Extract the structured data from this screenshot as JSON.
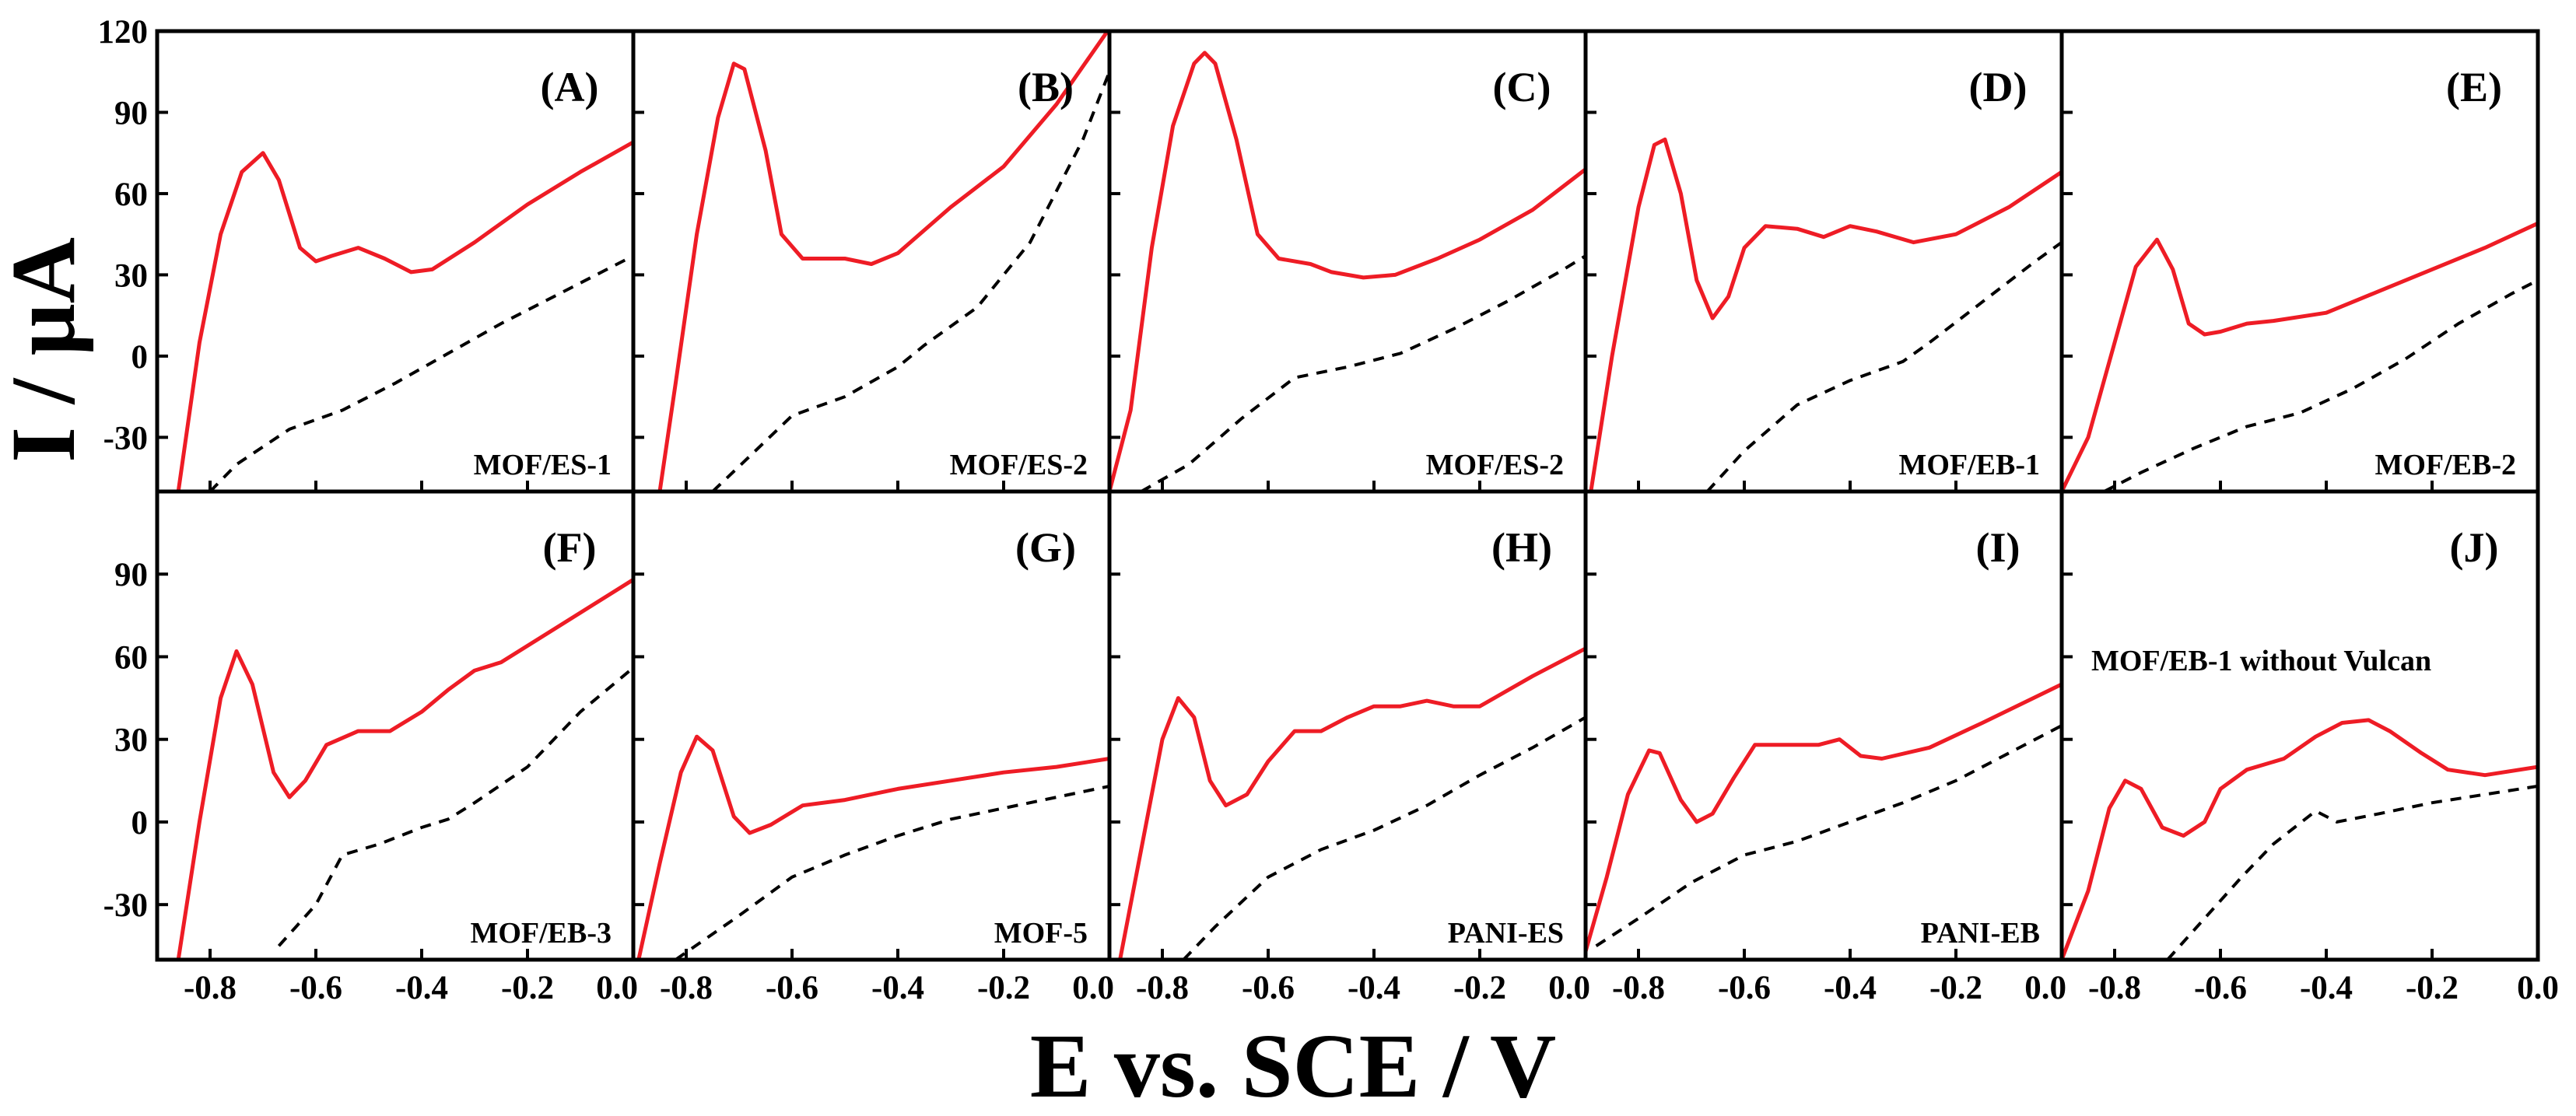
{
  "chart_data": {
    "type": "line",
    "figure_ylabel": "I / μA",
    "figure_xlabel": "E vs. SCE / V",
    "xlim": [
      -0.9,
      0.0
    ],
    "ylim": [
      -50,
      120
    ],
    "x_ticks": [
      -0.8,
      -0.6,
      -0.4,
      -0.2,
      0.0
    ],
    "x_tick_labels": [
      "-0.8",
      "-0.6",
      "-0.4",
      "-0.2",
      "0.0"
    ],
    "y_ticks": [
      -30,
      0,
      30,
      60,
      90,
      120
    ],
    "y_tick_labels_top": [
      "-30",
      "0",
      "30",
      "60",
      "90",
      "120"
    ],
    "y_tick_labels_bottom": [
      "-30",
      "0",
      "30",
      "60",
      "90"
    ],
    "series_styles": {
      "with_sample": "#ee1c25",
      "blank": "#000000"
    },
    "panels": [
      {
        "letter": "(A)",
        "label": "MOF/ES-1",
        "red": [
          [
            -0.86,
            -50
          ],
          [
            -0.82,
            5
          ],
          [
            -0.78,
            45
          ],
          [
            -0.74,
            68
          ],
          [
            -0.7,
            75
          ],
          [
            -0.67,
            65
          ],
          [
            -0.63,
            40
          ],
          [
            -0.6,
            35
          ],
          [
            -0.57,
            37
          ],
          [
            -0.52,
            40
          ],
          [
            -0.47,
            36
          ],
          [
            -0.42,
            31
          ],
          [
            -0.38,
            32
          ],
          [
            -0.3,
            42
          ],
          [
            -0.2,
            56
          ],
          [
            -0.1,
            68
          ],
          [
            0.0,
            79
          ]
        ],
        "black": [
          [
            -0.8,
            -50
          ],
          [
            -0.75,
            -40
          ],
          [
            -0.65,
            -27
          ],
          [
            -0.55,
            -20
          ],
          [
            -0.45,
            -10
          ],
          [
            -0.35,
            1
          ],
          [
            -0.25,
            12
          ],
          [
            -0.15,
            22
          ],
          [
            -0.05,
            32
          ],
          [
            0.0,
            37
          ]
        ]
      },
      {
        "letter": "(B)",
        "label": "MOF/ES-2",
        "red": [
          [
            -0.85,
            -50
          ],
          [
            -0.82,
            -10
          ],
          [
            -0.78,
            45
          ],
          [
            -0.74,
            88
          ],
          [
            -0.71,
            108
          ],
          [
            -0.69,
            106
          ],
          [
            -0.65,
            76
          ],
          [
            -0.62,
            45
          ],
          [
            -0.58,
            36
          ],
          [
            -0.5,
            36
          ],
          [
            -0.45,
            34
          ],
          [
            -0.4,
            38
          ],
          [
            -0.3,
            55
          ],
          [
            -0.2,
            70
          ],
          [
            -0.1,
            93
          ],
          [
            0.0,
            121
          ]
        ],
        "black": [
          [
            -0.75,
            -50
          ],
          [
            -0.68,
            -37
          ],
          [
            -0.6,
            -22
          ],
          [
            -0.5,
            -15
          ],
          [
            -0.4,
            -4
          ],
          [
            -0.35,
            4
          ],
          [
            -0.25,
            18
          ],
          [
            -0.15,
            42
          ],
          [
            -0.05,
            80
          ],
          [
            0.0,
            105
          ]
        ]
      },
      {
        "letter": "(C)",
        "label": "MOF/ES-2",
        "red": [
          [
            -0.9,
            -50
          ],
          [
            -0.86,
            -20
          ],
          [
            -0.82,
            40
          ],
          [
            -0.78,
            85
          ],
          [
            -0.74,
            108
          ],
          [
            -0.72,
            112
          ],
          [
            -0.7,
            108
          ],
          [
            -0.66,
            80
          ],
          [
            -0.62,
            45
          ],
          [
            -0.58,
            36
          ],
          [
            -0.52,
            34
          ],
          [
            -0.48,
            31
          ],
          [
            -0.42,
            29
          ],
          [
            -0.36,
            30
          ],
          [
            -0.28,
            36
          ],
          [
            -0.2,
            43
          ],
          [
            -0.1,
            54
          ],
          [
            0.0,
            69
          ]
        ],
        "black": [
          [
            -0.84,
            -50
          ],
          [
            -0.75,
            -40
          ],
          [
            -0.65,
            -23
          ],
          [
            -0.55,
            -8
          ],
          [
            -0.45,
            -4
          ],
          [
            -0.35,
            1
          ],
          [
            -0.25,
            10
          ],
          [
            -0.15,
            20
          ],
          [
            -0.05,
            31
          ],
          [
            0.0,
            37
          ]
        ]
      },
      {
        "letter": "(D)",
        "label": "MOF/EB-1",
        "red": [
          [
            -0.89,
            -50
          ],
          [
            -0.85,
            0
          ],
          [
            -0.8,
            55
          ],
          [
            -0.77,
            78
          ],
          [
            -0.75,
            80
          ],
          [
            -0.72,
            60
          ],
          [
            -0.69,
            28
          ],
          [
            -0.66,
            14
          ],
          [
            -0.63,
            22
          ],
          [
            -0.6,
            40
          ],
          [
            -0.56,
            48
          ],
          [
            -0.5,
            47
          ],
          [
            -0.45,
            44
          ],
          [
            -0.4,
            48
          ],
          [
            -0.35,
            46
          ],
          [
            -0.28,
            42
          ],
          [
            -0.2,
            45
          ],
          [
            -0.1,
            55
          ],
          [
            0.0,
            68
          ]
        ],
        "black": [
          [
            -0.67,
            -50
          ],
          [
            -0.6,
            -35
          ],
          [
            -0.5,
            -18
          ],
          [
            -0.4,
            -9
          ],
          [
            -0.3,
            -2
          ],
          [
            -0.25,
            5
          ],
          [
            -0.15,
            20
          ],
          [
            -0.05,
            35
          ],
          [
            0.0,
            42
          ]
        ]
      },
      {
        "letter": "(E)",
        "label": "MOF/EB-2",
        "red": [
          [
            -0.9,
            -50
          ],
          [
            -0.85,
            -30
          ],
          [
            -0.8,
            5
          ],
          [
            -0.76,
            33
          ],
          [
            -0.72,
            43
          ],
          [
            -0.69,
            32
          ],
          [
            -0.66,
            12
          ],
          [
            -0.63,
            8
          ],
          [
            -0.6,
            9
          ],
          [
            -0.55,
            12
          ],
          [
            -0.5,
            13
          ],
          [
            -0.4,
            16
          ],
          [
            -0.3,
            24
          ],
          [
            -0.2,
            32
          ],
          [
            -0.1,
            40
          ],
          [
            0.0,
            49
          ]
        ],
        "black": [
          [
            -0.82,
            -50
          ],
          [
            -0.75,
            -43
          ],
          [
            -0.65,
            -34
          ],
          [
            -0.55,
            -26
          ],
          [
            -0.45,
            -21
          ],
          [
            -0.35,
            -12
          ],
          [
            -0.25,
            -1
          ],
          [
            -0.15,
            12
          ],
          [
            -0.05,
            23
          ],
          [
            0.0,
            28
          ]
        ]
      },
      {
        "letter": "(F)",
        "label": "MOF/EB-3",
        "red": [
          [
            -0.86,
            -50
          ],
          [
            -0.82,
            0
          ],
          [
            -0.78,
            45
          ],
          [
            -0.75,
            62
          ],
          [
            -0.72,
            50
          ],
          [
            -0.68,
            18
          ],
          [
            -0.65,
            9
          ],
          [
            -0.62,
            15
          ],
          [
            -0.58,
            28
          ],
          [
            -0.52,
            33
          ],
          [
            -0.46,
            33
          ],
          [
            -0.4,
            40
          ],
          [
            -0.35,
            48
          ],
          [
            -0.3,
            55
          ],
          [
            -0.25,
            58
          ],
          [
            -0.15,
            70
          ],
          [
            0.0,
            88
          ]
        ],
        "black": [
          [
            -0.67,
            -45
          ],
          [
            -0.6,
            -30
          ],
          [
            -0.55,
            -12
          ],
          [
            -0.48,
            -8
          ],
          [
            -0.4,
            -2
          ],
          [
            -0.35,
            1
          ],
          [
            -0.3,
            7
          ],
          [
            -0.2,
            20
          ],
          [
            -0.1,
            40
          ],
          [
            0.0,
            56
          ]
        ]
      },
      {
        "letter": "(G)",
        "label": "MOF-5",
        "red": [
          [
            -0.89,
            -50
          ],
          [
            -0.85,
            -15
          ],
          [
            -0.81,
            18
          ],
          [
            -0.78,
            31
          ],
          [
            -0.75,
            26
          ],
          [
            -0.71,
            2
          ],
          [
            -0.68,
            -4
          ],
          [
            -0.64,
            -1
          ],
          [
            -0.58,
            6
          ],
          [
            -0.5,
            8
          ],
          [
            -0.4,
            12
          ],
          [
            -0.3,
            15
          ],
          [
            -0.2,
            18
          ],
          [
            -0.1,
            20
          ],
          [
            0.0,
            23
          ]
        ],
        "black": [
          [
            -0.82,
            -50
          ],
          [
            -0.7,
            -34
          ],
          [
            -0.6,
            -20
          ],
          [
            -0.5,
            -12
          ],
          [
            -0.4,
            -5
          ],
          [
            -0.3,
            1
          ],
          [
            -0.2,
            5
          ],
          [
            -0.1,
            9
          ],
          [
            0.0,
            13
          ]
        ]
      },
      {
        "letter": "(H)",
        "label": "PANI-ES",
        "red": [
          [
            -0.88,
            -50
          ],
          [
            -0.84,
            -10
          ],
          [
            -0.8,
            30
          ],
          [
            -0.77,
            45
          ],
          [
            -0.74,
            38
          ],
          [
            -0.71,
            15
          ],
          [
            -0.68,
            6
          ],
          [
            -0.64,
            10
          ],
          [
            -0.6,
            22
          ],
          [
            -0.55,
            33
          ],
          [
            -0.5,
            33
          ],
          [
            -0.45,
            38
          ],
          [
            -0.4,
            42
          ],
          [
            -0.35,
            42
          ],
          [
            -0.3,
            44
          ],
          [
            -0.25,
            42
          ],
          [
            -0.2,
            42
          ],
          [
            -0.1,
            53
          ],
          [
            0.0,
            63
          ]
        ],
        "black": [
          [
            -0.76,
            -50
          ],
          [
            -0.7,
            -38
          ],
          [
            -0.6,
            -20
          ],
          [
            -0.5,
            -10
          ],
          [
            -0.4,
            -3
          ],
          [
            -0.3,
            6
          ],
          [
            -0.2,
            17
          ],
          [
            -0.1,
            27
          ],
          [
            0.0,
            38
          ]
        ]
      },
      {
        "letter": "(I)",
        "label": "PANI-EB",
        "red": [
          [
            -0.9,
            -47
          ],
          [
            -0.86,
            -20
          ],
          [
            -0.82,
            10
          ],
          [
            -0.78,
            26
          ],
          [
            -0.76,
            25
          ],
          [
            -0.72,
            8
          ],
          [
            -0.69,
            0
          ],
          [
            -0.66,
            3
          ],
          [
            -0.62,
            16
          ],
          [
            -0.58,
            28
          ],
          [
            -0.52,
            28
          ],
          [
            -0.46,
            28
          ],
          [
            -0.42,
            30
          ],
          [
            -0.38,
            24
          ],
          [
            -0.34,
            23
          ],
          [
            -0.25,
            27
          ],
          [
            -0.15,
            36
          ],
          [
            0.0,
            50
          ]
        ],
        "black": [
          [
            -0.88,
            -45
          ],
          [
            -0.8,
            -35
          ],
          [
            -0.7,
            -22
          ],
          [
            -0.6,
            -12
          ],
          [
            -0.5,
            -7
          ],
          [
            -0.4,
            0
          ],
          [
            -0.3,
            7
          ],
          [
            -0.2,
            15
          ],
          [
            -0.1,
            25
          ],
          [
            0.0,
            35
          ]
        ]
      },
      {
        "letter": "(J)",
        "label": "MOF/EB-1 without Vulcan",
        "red": [
          [
            -0.9,
            -50
          ],
          [
            -0.85,
            -25
          ],
          [
            -0.81,
            5
          ],
          [
            -0.78,
            15
          ],
          [
            -0.75,
            12
          ],
          [
            -0.71,
            -2
          ],
          [
            -0.67,
            -5
          ],
          [
            -0.63,
            0
          ],
          [
            -0.6,
            12
          ],
          [
            -0.55,
            19
          ],
          [
            -0.48,
            23
          ],
          [
            -0.42,
            31
          ],
          [
            -0.37,
            36
          ],
          [
            -0.32,
            37
          ],
          [
            -0.28,
            33
          ],
          [
            -0.22,
            25
          ],
          [
            -0.17,
            19
          ],
          [
            -0.1,
            17
          ],
          [
            0.0,
            20
          ]
        ],
        "black": [
          [
            -0.7,
            -50
          ],
          [
            -0.63,
            -35
          ],
          [
            -0.56,
            -20
          ],
          [
            -0.5,
            -8
          ],
          [
            -0.46,
            -2
          ],
          [
            -0.42,
            4
          ],
          [
            -0.38,
            0
          ],
          [
            -0.3,
            3
          ],
          [
            -0.2,
            7
          ],
          [
            -0.1,
            10
          ],
          [
            0.0,
            13
          ]
        ]
      }
    ]
  }
}
